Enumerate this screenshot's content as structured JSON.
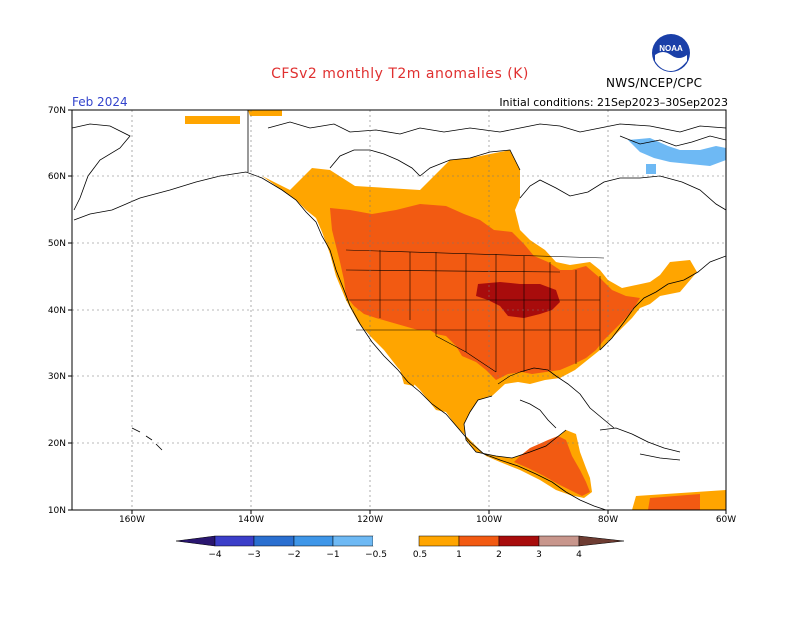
{
  "title": "CFSv2 monthly T2m anomalies (K)",
  "valid_label": "Feb 2024",
  "init_label": "Initial conditions: 21Sep2023–30Sep2023",
  "agency": "NWS/NCEP/CPC",
  "logo_text": "NOAA",
  "lat_labels": [
    "70N",
    "60N",
    "50N",
    "40N",
    "30N",
    "20N",
    "10N"
  ],
  "lon_labels": [
    "160W",
    "140W",
    "120W",
    "100W",
    "80W",
    "60W"
  ],
  "colorbar": {
    "ticks": [
      "−4",
      "−3",
      "−2",
      "−1",
      "−0.5",
      "0.5",
      "1",
      "2",
      "3",
      "4"
    ],
    "colors": {
      "lt_m4": "#2a1670",
      "m4_m3": "#3b3ec9",
      "m3_m2": "#2a6fd0",
      "m2_m1": "#3e96e8",
      "m1_m05": "#6eb9f4",
      "p05_p1": "#ffa500",
      "p1_p2": "#f25a12",
      "p2_p3": "#e8301a",
      "p3_p4": "#a80c0c",
      "p4_p5": "#c8968c",
      "gt_p5": "#6e3c32"
    }
  }
}
